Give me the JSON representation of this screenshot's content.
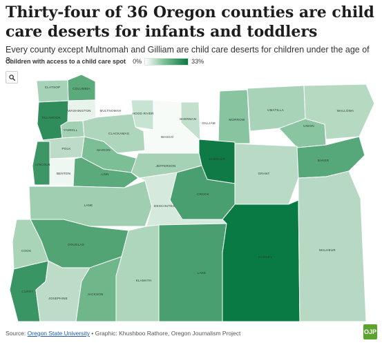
{
  "header": {
    "title": "Thirty-four of 36 Oregon counties are child care deserts for infants and toddlers",
    "subtitle": "Every county except Multnomah and Gilliam are child care deserts for children under the age of 3."
  },
  "legend": {
    "label": "Children with access to a child care spot",
    "min_label": "0%",
    "max_label": "33%",
    "scale_min": 0,
    "scale_max": 33,
    "color_low": "#ffffff",
    "color_mid": "#7cbf96",
    "color_high": "#0a7a44"
  },
  "zoom_icon": "search-icon",
  "footer": {
    "source_label": "Source:",
    "source_link": "Oregon State University",
    "credit": "• Graphic: Khushboo Rathore, Oregon Journalism Project"
  },
  "logo": {
    "text": "OJP"
  },
  "counties": [
    {
      "name": "CLATSOP",
      "color": "#a6d3b7"
    },
    {
      "name": "COLUMBIA",
      "color": "#5aaa7c"
    },
    {
      "name": "TILLAMOOK",
      "color": "#2f8d5b"
    },
    {
      "name": "WASHINGTON",
      "color": "#e8f3ec"
    },
    {
      "name": "MULTNOMAH",
      "color": "#ffffff"
    },
    {
      "name": "HOOD RIVER",
      "color": "#c7e3d1"
    },
    {
      "name": "YAMHILL",
      "color": "#a3d1b4"
    },
    {
      "name": "CLACKAMAS",
      "color": "#aed6bc"
    },
    {
      "name": "POLK",
      "color": "#bcdcc7"
    },
    {
      "name": "LINCOLN",
      "color": "#3d9666"
    },
    {
      "name": "MARION",
      "color": "#7cbf96"
    },
    {
      "name": "BENTON",
      "color": "#eef7f1"
    },
    {
      "name": "LINN",
      "color": "#5aaa7c"
    },
    {
      "name": "WASCO",
      "color": "#f7fbf8"
    },
    {
      "name": "SHERMAN",
      "color": "#c3e0cd"
    },
    {
      "name": "GILLIAM",
      "color": "#ffffff"
    },
    {
      "name": "MORROW",
      "color": "#88c4a0"
    },
    {
      "name": "UMATILLA",
      "color": "#a9d3b8"
    },
    {
      "name": "UNION",
      "color": "#8ac5a1"
    },
    {
      "name": "WALLOWA",
      "color": "#b6d9c2"
    },
    {
      "name": "JEFFERSON",
      "color": "#a5d2b5"
    },
    {
      "name": "WHEELER",
      "color": "#0f7a45"
    },
    {
      "name": "GRANT",
      "color": "#b9dbc5"
    },
    {
      "name": "BAKER",
      "color": "#56a87a"
    },
    {
      "name": "LANE",
      "color": "#9fcfb0"
    },
    {
      "name": "CROOK",
      "color": "#4a9f70"
    },
    {
      "name": "DESCHUTES",
      "color": "#d5eadc"
    },
    {
      "name": "DOUGLAS",
      "color": "#52a474"
    },
    {
      "name": "COOS",
      "color": "#a9d4b8"
    },
    {
      "name": "CURRY",
      "color": "#3a9564"
    },
    {
      "name": "JOSEPHINE",
      "color": "#bddcc8"
    },
    {
      "name": "JACKSON",
      "color": "#6fb68b"
    },
    {
      "name": "KLAMATH",
      "color": "#aed6bc"
    },
    {
      "name": "LAKE",
      "color": "#4a9f70"
    },
    {
      "name": "HARNEY",
      "color": "#0a7a44"
    },
    {
      "name": "MALHEUR",
      "color": "#b7d9c3"
    }
  ]
}
